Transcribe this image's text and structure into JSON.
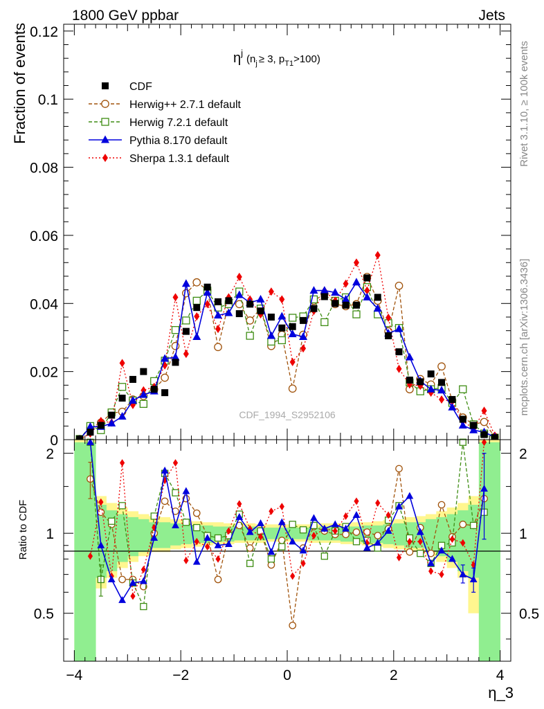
{
  "header": {
    "left": "1800 GeV ppbar",
    "right": "Jets"
  },
  "side_labels": {
    "rivet": "Rivet 3.1.10, ≥ 100k events",
    "mcplots": "mcplots.cern.ch [arXiv:1306.3436]"
  },
  "watermark": "CDF_1994_S2952106",
  "colors": {
    "herwigpp": "#a0520a",
    "herwig7": "#3d8c12",
    "pythia": "#0000dd",
    "sherpa": "#ee0000",
    "data": "#000000",
    "band_inner": "#90ee90",
    "band_outer": "#fff68f"
  },
  "chart_data": [
    {
      "type": "scatter",
      "title_main": "η",
      "title_sup": "j",
      "title_cond": "(n",
      "title_cond_sub1": "j",
      "title_cond_mid": "≥ 3, p",
      "title_cond_sub2": "T1",
      "title_cond_end": ">100)",
      "ylabel": "Fraction of events",
      "xlabel": "η_3",
      "xlim": [
        -4.2,
        4.2
      ],
      "ylim": [
        0,
        0.122
      ],
      "yticks": [
        "0",
        "0.02",
        "0.04",
        "0.06",
        "0.08",
        "0.1",
        "0.12"
      ],
      "ytick_values": [
        0,
        0.02,
        0.04,
        0.06,
        0.08,
        0.1,
        0.12
      ],
      "legend_position": "top-left",
      "x": [
        -3.9,
        -3.7,
        -3.5,
        -3.3,
        -3.1,
        -2.9,
        -2.7,
        -2.5,
        -2.3,
        -2.1,
        -1.9,
        -1.7,
        -1.5,
        -1.3,
        -1.1,
        -0.9,
        -0.7,
        -0.5,
        -0.3,
        -0.1,
        0.1,
        0.3,
        0.5,
        0.7,
        0.9,
        1.1,
        1.3,
        1.5,
        1.7,
        1.9,
        2.1,
        2.3,
        2.5,
        2.7,
        2.9,
        3.1,
        3.3,
        3.5,
        3.7,
        3.9
      ],
      "series": [
        {
          "name": "CDF",
          "key": "cdf",
          "values": [
            0.0002,
            0.0022,
            0.0042,
            0.0072,
            0.0122,
            0.0177,
            0.02,
            0.0148,
            0.0138,
            0.0227,
            0.0318,
            0.0388,
            0.0448,
            0.0405,
            0.0408,
            0.037,
            0.0398,
            0.0378,
            0.036,
            0.0328,
            0.0332,
            0.035,
            0.0385,
            0.042,
            0.04,
            0.0395,
            0.0395,
            0.0475,
            0.0418,
            0.0305,
            0.0258,
            0.0175,
            0.017,
            0.0193,
            0.0168,
            0.0118,
            0.006,
            0.0042,
            0.0015,
            0.0006
          ]
        },
        {
          "name": "Herwig++ 2.7.1 default",
          "key": "herwigpp",
          "values": [
            0.0002,
            0.0035,
            0.005,
            0.0078,
            0.0082,
            0.0118,
            0.0128,
            0.0148,
            0.0182,
            0.0275,
            0.043,
            0.0462,
            0.044,
            0.0272,
            0.04,
            0.0398,
            0.035,
            0.0385,
            0.0275,
            0.0308,
            0.015,
            0.0308,
            0.0408,
            0.0428,
            0.0398,
            0.0392,
            0.0398,
            0.0478,
            0.0408,
            0.0318,
            0.0452,
            0.0148,
            0.0178,
            0.0162,
            0.0215,
            0.0115,
            0.0065,
            0.0045,
            0.0052,
            0.0008
          ]
        },
        {
          "name": "Herwig 7.2.1 default",
          "key": "herwig7",
          "values": [
            0.0002,
            0.004,
            0.0028,
            0.008,
            0.0155,
            0.0115,
            0.0105,
            0.0172,
            0.0232,
            0.0322,
            0.035,
            0.0408,
            0.0438,
            0.0388,
            0.0398,
            0.0435,
            0.0305,
            0.0385,
            0.0288,
            0.0292,
            0.0358,
            0.0362,
            0.0412,
            0.0345,
            0.0408,
            0.0418,
            0.0368,
            0.0448,
            0.0368,
            0.0342,
            0.0328,
            0.0168,
            0.0142,
            0.0148,
            0.0152,
            0.0108,
            0.0148,
            0.0045,
            0.0018,
            0.0006
          ]
        },
        {
          "name": "Pythia 8.170 default",
          "key": "pythia",
          "values": [
            0.0001,
            0.0038,
            0.0038,
            0.0048,
            0.0068,
            0.0115,
            0.0132,
            0.0142,
            0.0238,
            0.0242,
            0.0458,
            0.0302,
            0.0432,
            0.0365,
            0.0372,
            0.0425,
            0.0402,
            0.0412,
            0.0305,
            0.0362,
            0.031,
            0.0302,
            0.0438,
            0.0438,
            0.0432,
            0.0412,
            0.0462,
            0.0418,
            0.0385,
            0.0312,
            0.0325,
            0.0242,
            0.0172,
            0.0148,
            0.0145,
            0.0095,
            0.0042,
            0.0028,
            0.0022,
            0.0008
          ]
        },
        {
          "name": "Sherpa 1.3.1 default",
          "key": "sherpa",
          "values": [
            0.0001,
            0.0018,
            0.0055,
            0.005,
            0.0225,
            0.0102,
            0.0145,
            0.0155,
            0.0218,
            0.0418,
            0.0252,
            0.0362,
            0.0398,
            0.0325,
            0.0418,
            0.0478,
            0.0412,
            0.0368,
            0.0435,
            0.0412,
            0.0228,
            0.0268,
            0.0378,
            0.0438,
            0.0408,
            0.0458,
            0.052,
            0.0438,
            0.0542,
            0.0358,
            0.0208,
            0.0162,
            0.0158,
            0.0138,
            0.0118,
            0.0112,
            0.0055,
            0.0032,
            0.0085,
            0.0012
          ]
        }
      ]
    },
    {
      "type": "line",
      "ylabel": "Ratio to CDF",
      "ylim": [
        0.33,
        2.25
      ],
      "log_y": true,
      "yticks": [
        "0.5",
        "1",
        "2"
      ],
      "ytick_values": [
        0.5,
        1,
        2
      ],
      "xticks": [
        "−4",
        "−2",
        "0",
        "2",
        "4"
      ],
      "xtick_values": [
        -4,
        -2,
        0,
        2,
        4
      ],
      "band_inner": [
        [
          0.33,
          2.2
        ],
        [
          0.33,
          2.2
        ],
        [
          0.68,
          1.28
        ],
        [
          0.72,
          1.22
        ],
        [
          0.78,
          1.18
        ],
        [
          0.82,
          1.15
        ],
        [
          0.85,
          1.13
        ],
        [
          0.88,
          1.1
        ],
        [
          0.88,
          1.1
        ],
        [
          0.9,
          1.09
        ],
        [
          0.91,
          1.08
        ],
        [
          0.92,
          1.07
        ],
        [
          0.92,
          1.07
        ],
        [
          0.93,
          1.06
        ],
        [
          0.93,
          1.06
        ],
        [
          0.94,
          1.06
        ],
        [
          0.94,
          1.06
        ],
        [
          0.94,
          1.05
        ],
        [
          0.95,
          1.05
        ],
        [
          0.95,
          1.05
        ],
        [
          0.95,
          1.05
        ],
        [
          0.95,
          1.05
        ],
        [
          0.94,
          1.05
        ],
        [
          0.94,
          1.06
        ],
        [
          0.94,
          1.06
        ],
        [
          0.93,
          1.06
        ],
        [
          0.93,
          1.06
        ],
        [
          0.92,
          1.07
        ],
        [
          0.92,
          1.07
        ],
        [
          0.91,
          1.08
        ],
        [
          0.9,
          1.09
        ],
        [
          0.88,
          1.1
        ],
        [
          0.88,
          1.1
        ],
        [
          0.85,
          1.13
        ],
        [
          0.82,
          1.15
        ],
        [
          0.78,
          1.18
        ],
        [
          0.72,
          1.22
        ],
        [
          0.68,
          1.28
        ],
        [
          0.33,
          2.2
        ],
        [
          0.33,
          2.2
        ]
      ],
      "band_outer": [
        [
          0.33,
          2.25
        ],
        [
          0.36,
          2.25
        ],
        [
          0.62,
          1.38
        ],
        [
          0.68,
          1.3
        ],
        [
          0.74,
          1.25
        ],
        [
          0.78,
          1.21
        ],
        [
          0.82,
          1.18
        ],
        [
          0.85,
          1.16
        ],
        [
          0.85,
          1.15
        ],
        [
          0.87,
          1.13
        ],
        [
          0.88,
          1.12
        ],
        [
          0.89,
          1.11
        ],
        [
          0.9,
          1.1
        ],
        [
          0.91,
          1.1
        ],
        [
          0.91,
          1.09
        ],
        [
          0.92,
          1.09
        ],
        [
          0.92,
          1.09
        ],
        [
          0.92,
          1.08
        ],
        [
          0.93,
          1.08
        ],
        [
          0.93,
          1.08
        ],
        [
          0.93,
          1.08
        ],
        [
          0.93,
          1.08
        ],
        [
          0.92,
          1.08
        ],
        [
          0.92,
          1.09
        ],
        [
          0.92,
          1.09
        ],
        [
          0.91,
          1.09
        ],
        [
          0.91,
          1.1
        ],
        [
          0.9,
          1.1
        ],
        [
          0.89,
          1.11
        ],
        [
          0.88,
          1.12
        ],
        [
          0.87,
          1.13
        ],
        [
          0.85,
          1.15
        ],
        [
          0.85,
          1.16
        ],
        [
          0.82,
          1.18
        ],
        [
          0.78,
          1.21
        ],
        [
          0.74,
          1.25
        ],
        [
          0.68,
          1.3
        ],
        [
          0.5,
          1.38
        ],
        [
          0.33,
          2.25
        ],
        [
          0.33,
          2.25
        ]
      ],
      "series": [
        {
          "key": "herwigpp",
          "values": [
            null,
            1.6,
            1.2,
            1.08,
            0.67,
            0.67,
            0.63,
            1.0,
            1.32,
            1.21,
            1.35,
            1.19,
            0.98,
            0.67,
            0.98,
            1.07,
            0.88,
            1.02,
            0.76,
            0.94,
            0.45,
            0.88,
            1.06,
            1.02,
            0.99,
            0.99,
            1.01,
            1.01,
            0.98,
            1.04,
            1.75,
            0.85,
            1.05,
            0.84,
            1.28,
            0.97,
            1.08,
            1.07,
            1.35,
            null
          ]
        },
        {
          "key": "herwig7",
          "values": [
            null,
            2.2,
            0.67,
            1.11,
            1.27,
            0.65,
            0.53,
            1.16,
            1.68,
            1.42,
            1.1,
            1.05,
            0.98,
            0.96,
            0.98,
            1.18,
            0.77,
            1.02,
            0.8,
            0.89,
            1.08,
            1.03,
            1.07,
            0.82,
            1.02,
            1.06,
            0.93,
            0.94,
            0.88,
            1.12,
            1.27,
            0.96,
            0.84,
            0.77,
            0.9,
            0.92,
            2.2,
            1.07,
            1.2,
            null
          ]
        },
        {
          "key": "pythia",
          "values": [
            null,
            2.2,
            0.9,
            0.67,
            0.56,
            0.65,
            0.66,
            0.96,
            1.72,
            1.07,
            1.44,
            0.78,
            0.96,
            0.9,
            0.91,
            1.15,
            1.01,
            1.09,
            0.85,
            1.1,
            0.93,
            0.86,
            1.14,
            1.04,
            1.08,
            1.04,
            1.17,
            0.88,
            0.92,
            1.02,
            1.26,
            1.38,
            1.01,
            0.77,
            0.86,
            0.8,
            0.7,
            0.67,
            1.47,
            null
          ]
        },
        {
          "key": "sherpa",
          "values": [
            null,
            0.82,
            1.31,
            0.69,
            1.84,
            0.58,
            0.73,
            1.05,
            1.58,
            1.84,
            0.79,
            0.93,
            0.89,
            0.8,
            1.02,
            1.29,
            1.04,
            0.97,
            1.21,
            1.26,
            0.69,
            0.77,
            0.98,
            1.04,
            1.02,
            1.16,
            1.32,
            0.92,
            1.3,
            1.17,
            0.81,
            0.93,
            0.93,
            0.72,
            0.7,
            0.95,
            0.92,
            0.76,
            2.2,
            null
          ]
        }
      ],
      "error_bars": [
        {
          "key": "pythia",
          "x": 3.3,
          "value": 0.7,
          "lo": 0.65,
          "hi": 0.76
        },
        {
          "key": "pythia",
          "x": 3.5,
          "value": 0.67,
          "lo": 0.6,
          "hi": 0.74
        },
        {
          "key": "pythia",
          "x": 3.7,
          "value": 1.47,
          "lo": 0.95,
          "hi": 2.0
        },
        {
          "key": "herwigpp",
          "x": -3.7,
          "value": 1.6,
          "lo": 1.35,
          "hi": 1.85
        },
        {
          "key": "herwig7",
          "x": -3.5,
          "value": 0.67,
          "lo": 0.58,
          "hi": 0.76
        }
      ]
    }
  ]
}
